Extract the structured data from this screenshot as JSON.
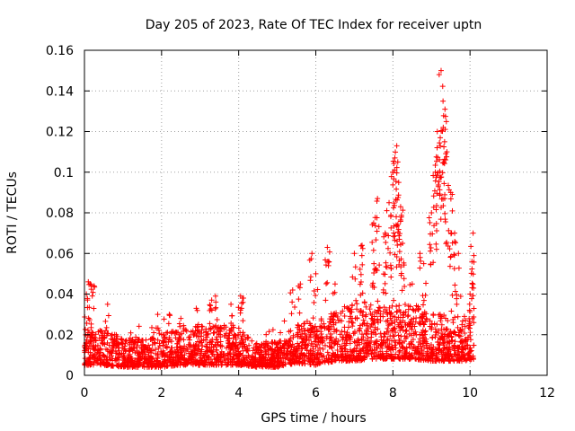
{
  "chart_data": {
    "type": "scatter",
    "title": "Day 205 of 2023, Rate Of TEC Index for receiver uptn",
    "xlabel": "GPS time / hours",
    "ylabel": "ROTI / TECUs",
    "xlim": [
      0,
      12
    ],
    "ylim": [
      0,
      0.16
    ],
    "xticks": [
      "0",
      "2",
      "4",
      "6",
      "8",
      "10",
      "12"
    ],
    "yticks": [
      "0",
      "0.02",
      "0.04",
      "0.06",
      "0.08",
      "0.1",
      "0.12",
      "0.14",
      "0.16"
    ],
    "grid": true,
    "marker": "+",
    "series_color": "#ff0000",
    "series": [
      {
        "name": "ROTI",
        "x_range": [
          0,
          10.1
        ],
        "baseline_envelope": [
          [
            0,
            0.005,
            0.02
          ],
          [
            0.5,
            0.005,
            0.022
          ],
          [
            1.0,
            0.004,
            0.018
          ],
          [
            1.5,
            0.004,
            0.017
          ],
          [
            2.0,
            0.004,
            0.02
          ],
          [
            2.5,
            0.005,
            0.022
          ],
          [
            3.0,
            0.005,
            0.024
          ],
          [
            3.5,
            0.005,
            0.025
          ],
          [
            4.0,
            0.005,
            0.022
          ],
          [
            4.5,
            0.004,
            0.015
          ],
          [
            5.0,
            0.004,
            0.016
          ],
          [
            5.5,
            0.006,
            0.024
          ],
          [
            6.0,
            0.005,
            0.028
          ],
          [
            6.5,
            0.007,
            0.03
          ],
          [
            7.0,
            0.007,
            0.034
          ],
          [
            7.5,
            0.008,
            0.036
          ],
          [
            8.0,
            0.008,
            0.034
          ],
          [
            8.5,
            0.008,
            0.034
          ],
          [
            9.0,
            0.007,
            0.03
          ],
          [
            9.5,
            0.007,
            0.028
          ],
          [
            10.0,
            0.007,
            0.028
          ],
          [
            10.1,
            0.008,
            0.03
          ]
        ],
        "notable_points": [
          [
            0.05,
            0.04
          ],
          [
            0.1,
            0.046
          ],
          [
            0.15,
            0.045
          ],
          [
            0.25,
            0.044
          ],
          [
            0.6,
            0.035
          ],
          [
            1.9,
            0.03
          ],
          [
            2.2,
            0.03
          ],
          [
            2.5,
            0.028
          ],
          [
            2.9,
            0.033
          ],
          [
            3.3,
            0.037
          ],
          [
            3.4,
            0.039
          ],
          [
            3.8,
            0.035
          ],
          [
            4.05,
            0.039
          ],
          [
            4.1,
            0.038
          ],
          [
            5.4,
            0.042
          ],
          [
            5.6,
            0.045
          ],
          [
            5.9,
            0.06
          ],
          [
            6.0,
            0.05
          ],
          [
            6.3,
            0.063
          ],
          [
            6.5,
            0.045
          ],
          [
            7.0,
            0.06
          ],
          [
            7.2,
            0.064
          ],
          [
            7.5,
            0.075
          ],
          [
            7.6,
            0.087
          ],
          [
            7.8,
            0.07
          ],
          [
            7.9,
            0.085
          ],
          [
            8.0,
            0.1
          ],
          [
            8.05,
            0.107
          ],
          [
            8.1,
            0.113
          ],
          [
            8.15,
            0.095
          ],
          [
            8.2,
            0.083
          ],
          [
            8.25,
            0.065
          ],
          [
            8.5,
            0.045
          ],
          [
            8.7,
            0.06
          ],
          [
            8.8,
            0.055
          ],
          [
            9.0,
            0.08
          ],
          [
            9.1,
            0.1
          ],
          [
            9.15,
            0.12
          ],
          [
            9.2,
            0.148
          ],
          [
            9.25,
            0.15
          ],
          [
            9.3,
            0.135
          ],
          [
            9.35,
            0.131
          ],
          [
            9.4,
            0.11
          ],
          [
            9.5,
            0.09
          ],
          [
            9.6,
            0.07
          ],
          [
            9.7,
            0.06
          ],
          [
            10.0,
            0.04
          ],
          [
            10.05,
            0.056
          ],
          [
            10.08,
            0.07
          ]
        ]
      }
    ]
  }
}
